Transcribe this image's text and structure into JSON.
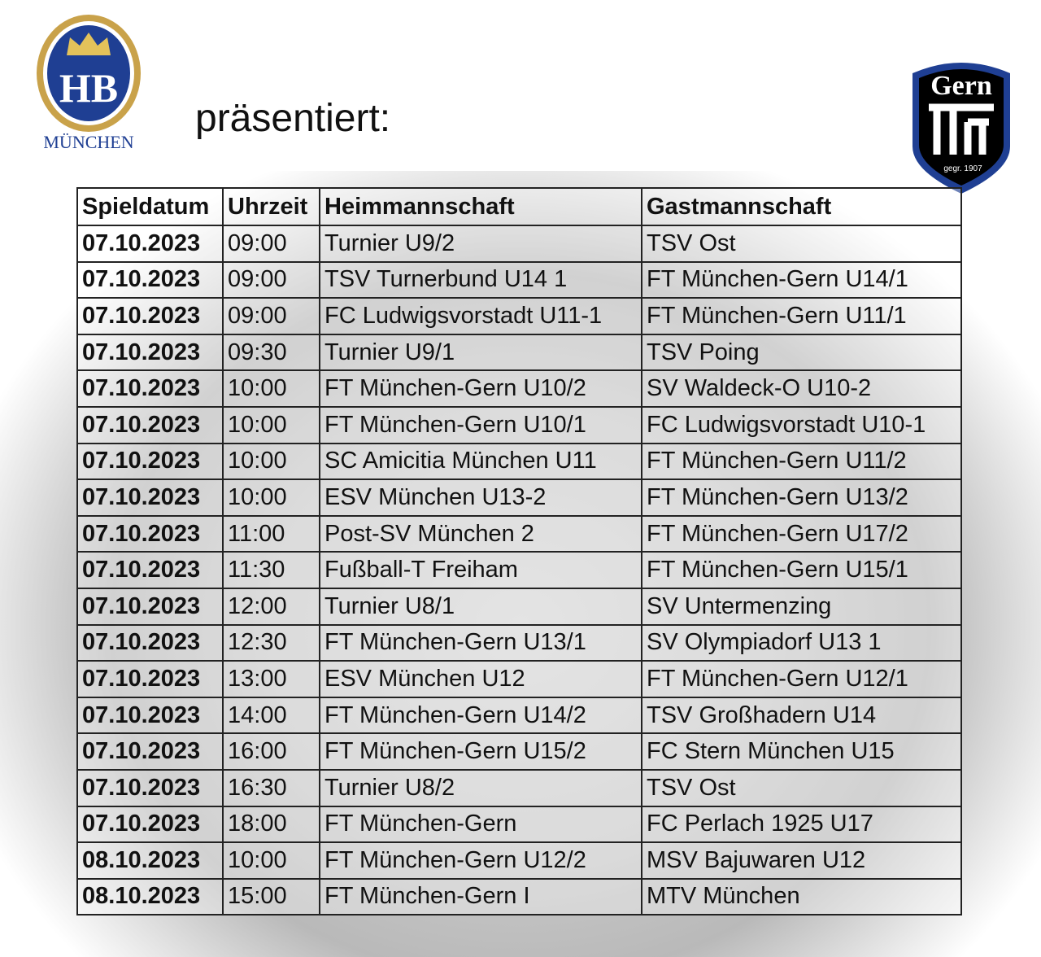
{
  "header": {
    "title": "präsentiert:",
    "left_logo": {
      "letters": "HB",
      "city": "MÜNCHEN"
    },
    "right_logo": {
      "name": "Gern",
      "founded": "gegr. 1907"
    }
  },
  "table": {
    "columns": [
      "Spieldatum",
      "Uhrzeit",
      "Heimmannschaft",
      "Gastmannschaft"
    ],
    "rows": [
      [
        "07.10.2023",
        "09:00",
        "Turnier U9/2",
        "TSV Ost"
      ],
      [
        "07.10.2023",
        "09:00",
        "TSV Turnerbund U14 1",
        "FT München-Gern U14/1"
      ],
      [
        "07.10.2023",
        "09:00",
        "FC Ludwigsvorstadt U11-1",
        "FT München-Gern U11/1"
      ],
      [
        "07.10.2023",
        "09:30",
        "Turnier U9/1",
        "TSV Poing"
      ],
      [
        "07.10.2023",
        "10:00",
        "FT München-Gern U10/2",
        "SV Waldeck-O U10-2"
      ],
      [
        "07.10.2023",
        "10:00",
        "FT München-Gern U10/1",
        "FC Ludwigsvorstadt U10-1"
      ],
      [
        "07.10.2023",
        "10:00",
        "SC Amicitia München U11",
        "FT München-Gern U11/2"
      ],
      [
        "07.10.2023",
        "10:00",
        "ESV München U13-2",
        "FT München-Gern U13/2"
      ],
      [
        "07.10.2023",
        "11:00",
        "Post-SV München 2",
        "FT München-Gern U17/2"
      ],
      [
        "07.10.2023",
        "11:30",
        "Fußball-T Freiham",
        "FT München-Gern U15/1"
      ],
      [
        "07.10.2023",
        "12:00",
        "Turnier U8/1",
        "SV Untermenzing"
      ],
      [
        "07.10.2023",
        "12:30",
        "FT München-Gern U13/1",
        "SV Olympiadorf U13 1"
      ],
      [
        "07.10.2023",
        "13:00",
        "ESV München U12",
        "FT München-Gern U12/1"
      ],
      [
        "07.10.2023",
        "14:00",
        "FT München-Gern U14/2",
        "TSV Großhadern U14"
      ],
      [
        "07.10.2023",
        "16:00",
        "FT München-Gern U15/2",
        "FC Stern München U15"
      ],
      [
        "07.10.2023",
        "16:30",
        "Turnier U8/2",
        "TSV Ost"
      ],
      [
        "07.10.2023",
        "18:00",
        "FT München-Gern",
        "FC Perlach 1925 U17"
      ],
      [
        "08.10.2023",
        "10:00",
        "FT München-Gern U12/2",
        "MSV Bajuwaren U12"
      ],
      [
        "08.10.2023",
        "15:00",
        "FT München-Gern I",
        "MTV München"
      ]
    ]
  }
}
